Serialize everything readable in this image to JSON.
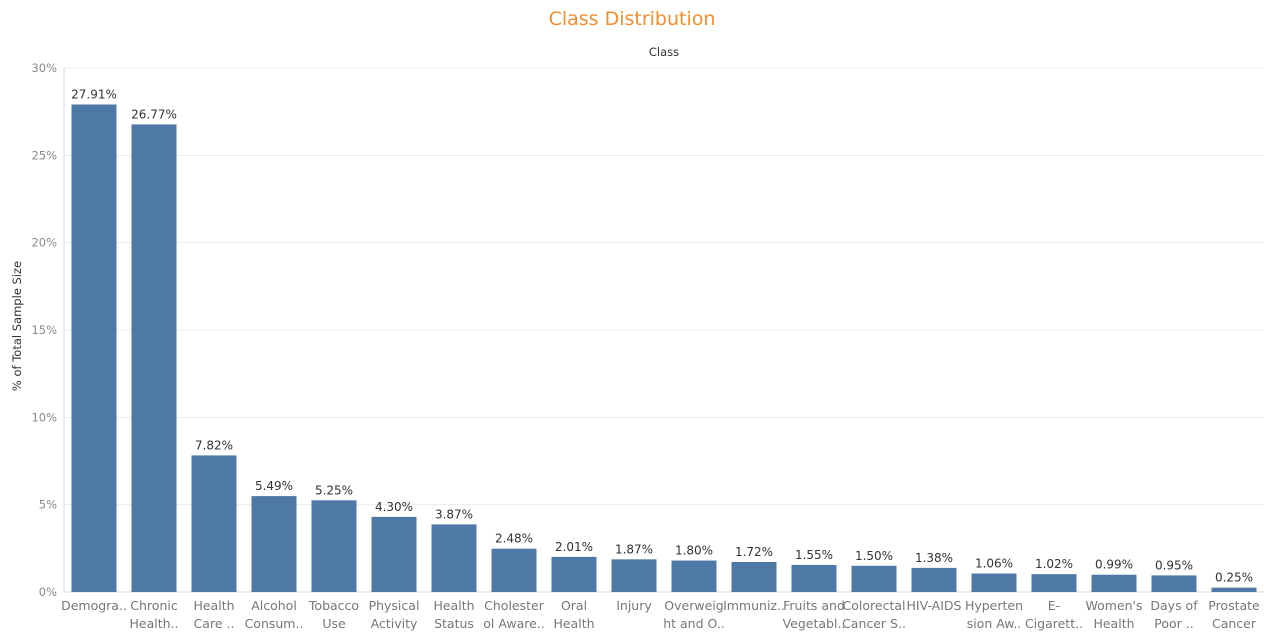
{
  "chart_data": {
    "type": "bar",
    "title": "Class Distribution",
    "header": "Class",
    "ylabel": "% of Total Sample Size",
    "xlabel": "",
    "ylim": [
      0,
      30
    ],
    "yticks": [
      0,
      5,
      10,
      15,
      20,
      25,
      30
    ],
    "ytick_labels": [
      "0%",
      "5%",
      "10%",
      "15%",
      "20%",
      "25%",
      "30%"
    ],
    "grid": true,
    "bar_color": "#4e79a7",
    "title_color": "#f28e2b",
    "categories": [
      [
        "Demogra.."
      ],
      [
        "Chronic",
        "Health.."
      ],
      [
        "Health",
        "Care .."
      ],
      [
        "Alcohol",
        "Consum.."
      ],
      [
        "Tobacco",
        "Use"
      ],
      [
        "Physical",
        "Activity"
      ],
      [
        "Health",
        "Status"
      ],
      [
        "Cholester",
        "ol Aware.."
      ],
      [
        "Oral",
        "Health"
      ],
      [
        "Injury"
      ],
      [
        "Overweig",
        "ht and O.."
      ],
      [
        "Immuniz.."
      ],
      [
        "Fruits and",
        "Vegetabl.."
      ],
      [
        "Colorectal",
        "Cancer S.."
      ],
      [
        "HIV-AIDS"
      ],
      [
        "Hyperten",
        "sion Aw.."
      ],
      [
        "E-",
        "Cigarett.."
      ],
      [
        "Women's",
        "Health"
      ],
      [
        "Days of",
        "Poor .."
      ],
      [
        "Prostate",
        "Cancer"
      ]
    ],
    "values": [
      27.91,
      26.77,
      7.82,
      5.49,
      5.25,
      4.3,
      3.87,
      2.48,
      2.01,
      1.87,
      1.8,
      1.72,
      1.55,
      1.5,
      1.38,
      1.06,
      1.02,
      0.99,
      0.95,
      0.25
    ],
    "value_labels": [
      "27.91%",
      "26.77%",
      "7.82%",
      "5.49%",
      "5.25%",
      "4.30%",
      "3.87%",
      "2.48%",
      "2.01%",
      "1.87%",
      "1.80%",
      "1.72%",
      "1.55%",
      "1.50%",
      "1.38%",
      "1.06%",
      "1.02%",
      "0.99%",
      "0.95%",
      "0.25%"
    ]
  }
}
